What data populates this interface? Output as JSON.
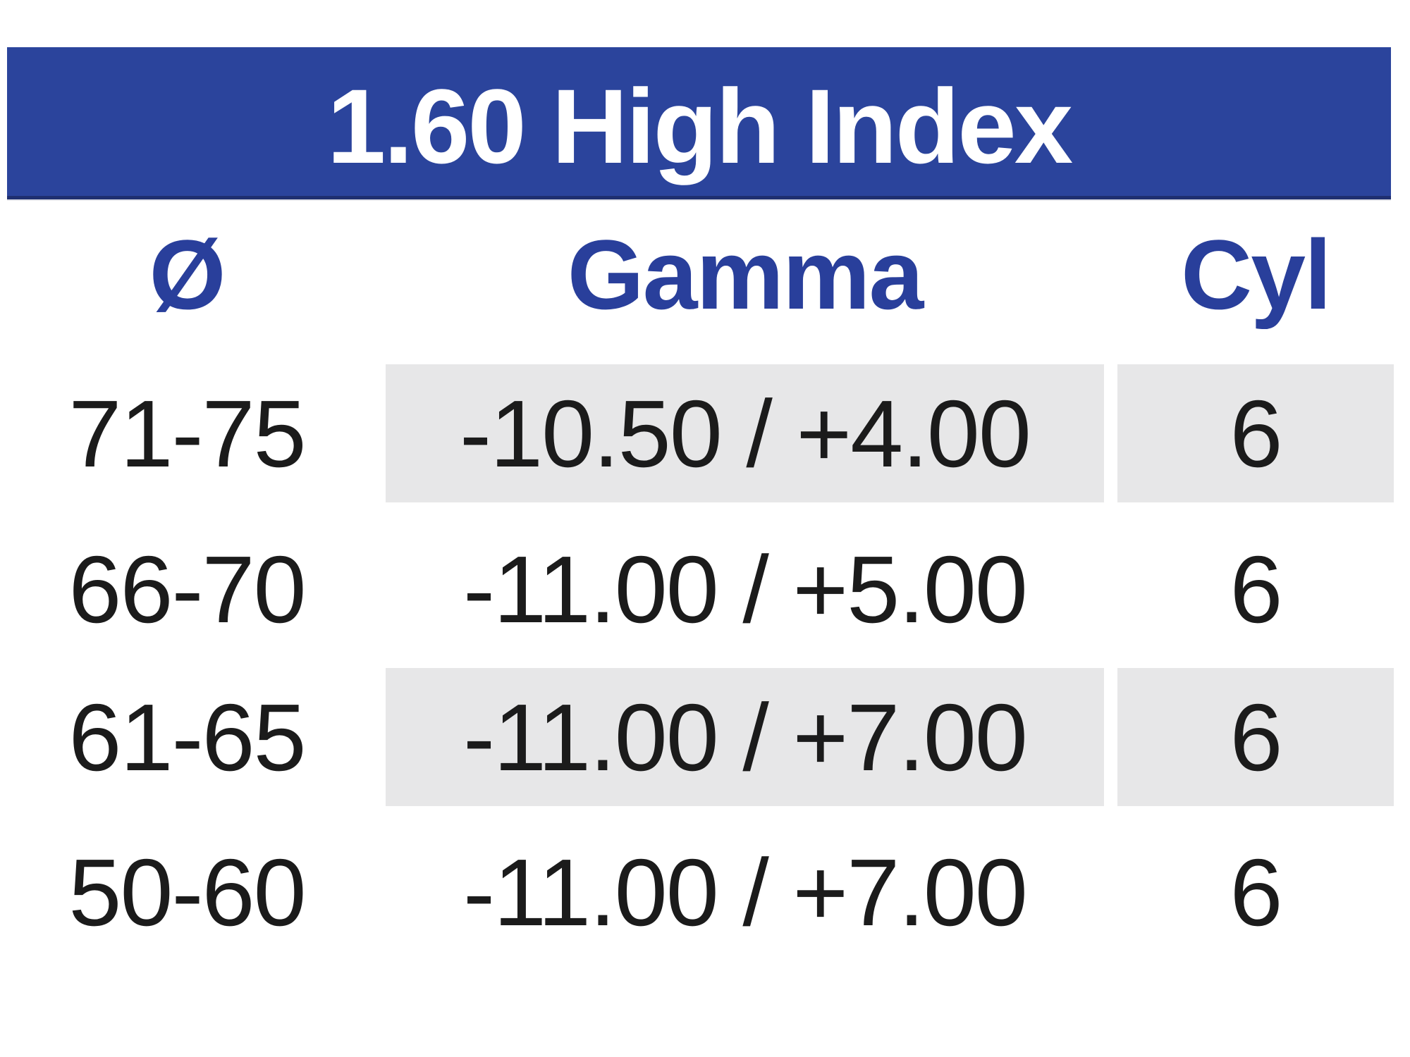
{
  "title": "1.60 High Index",
  "table": {
    "headers": {
      "diameter": "Ø",
      "gamma": "Gamma",
      "cyl": "Cyl"
    },
    "rows": [
      {
        "diameter": "71-75",
        "gamma": "-10.50 / +4.00",
        "cyl": "6"
      },
      {
        "diameter": "66-70",
        "gamma": "-11.00 / +5.00",
        "cyl": "6"
      },
      {
        "diameter": "61-65",
        "gamma": "-11.00 / +7.00",
        "cyl": "6"
      },
      {
        "diameter": "50-60",
        "gamma": "-11.00 / +7.00",
        "cyl": "6"
      }
    ]
  },
  "colors": {
    "banner_bg": "#2b449c",
    "banner_edge": "#1f2f70",
    "banner_text": "#ffffff",
    "header_text": "#293f9b",
    "stripe": "#e7e7e8",
    "row_text": "#1b1b1b",
    "background": "#ffffff"
  }
}
